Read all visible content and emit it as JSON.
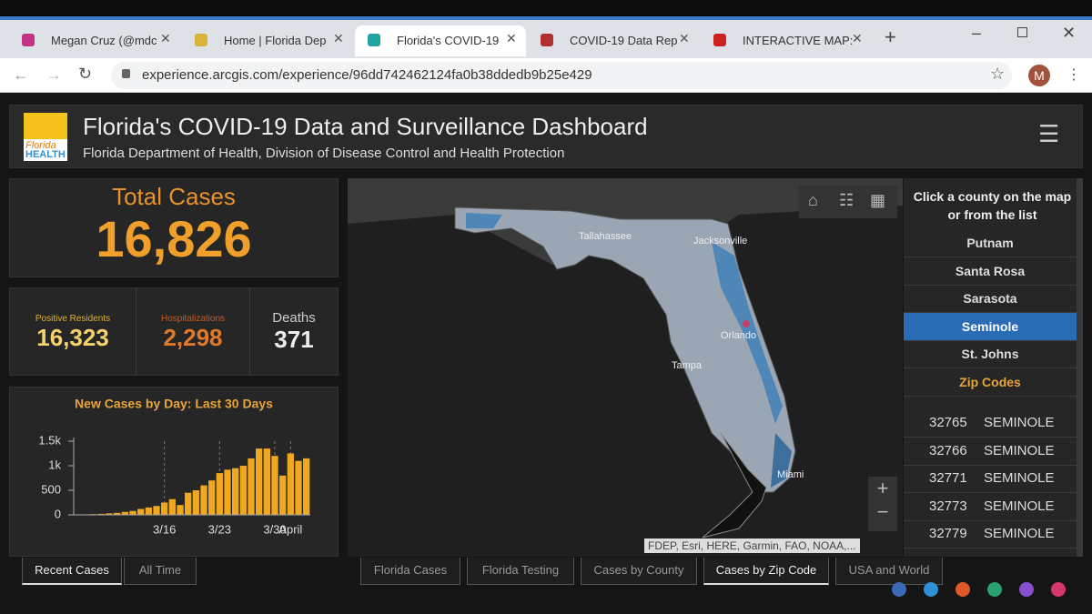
{
  "browser": {
    "tabs": [
      "Megan Cruz (@mdc",
      "Home | Florida Dep",
      "Florida's COVID-19",
      "COVID-19 Data Rep",
      "INTERACTIVE MAP:"
    ],
    "active_tab": 2,
    "url": "experience.arcgis.com/experience/96dd742462124fa0b38ddedb9b25e429",
    "profile": "M"
  },
  "header": {
    "logo": [
      "Florida",
      "HEALTH"
    ],
    "title": "Florida's COVID-19 Data and Surveillance Dashboard",
    "subtitle": "Florida Department of Health, Division of Disease Control and Health Protection"
  },
  "total": {
    "label": "Total Cases",
    "value": "16,826"
  },
  "stats": [
    {
      "label": "Positive Residents",
      "value": "16,323"
    },
    {
      "label": "Hospitalizations",
      "value": "2,298"
    },
    {
      "label": "Deaths",
      "value": "371"
    }
  ],
  "chart_data": {
    "type": "bar",
    "title": "New Cases by Day: Last 30 Days",
    "categories": [
      null,
      null,
      null,
      null,
      null,
      null,
      null,
      null,
      null,
      null,
      null,
      "3/16",
      null,
      null,
      null,
      null,
      null,
      null,
      "3/23",
      null,
      null,
      null,
      null,
      null,
      null,
      "3/30",
      null,
      "April",
      null,
      null
    ],
    "values": [
      5,
      10,
      15,
      20,
      30,
      40,
      60,
      80,
      120,
      150,
      180,
      250,
      320,
      200,
      450,
      500,
      600,
      700,
      850,
      920,
      950,
      1000,
      1150,
      1350,
      1350,
      1200,
      800,
      1250,
      1100,
      1150
    ],
    "color": "#f0a81e",
    "ylim": [
      0,
      1500
    ],
    "yticks": [
      0,
      500,
      {
        "value": 1000,
        "label": "1k"
      },
      {
        "value": 1500,
        "label": "1.5k"
      }
    ]
  },
  "left_tabs": [
    "Recent Cases",
    "All Time"
  ],
  "left_active": 0,
  "map": {
    "cities": [
      "Tallahassee",
      "Jacksonville",
      "Orlando",
      "Tampa",
      "Miami"
    ],
    "attribution": "FDEP, Esri, HERE, Garmin, FAO, NOAA,...",
    "zoom": [
      "+",
      "−"
    ]
  },
  "list": {
    "instruction": "Click a county on the map or from the list",
    "counties": [
      "Putnam",
      "Santa Rosa",
      "Sarasota",
      "Seminole",
      "St. Johns"
    ],
    "selected": 3,
    "section": "Zip Codes",
    "zips": [
      [
        "32765",
        "SEMINOLE"
      ],
      [
        "32766",
        "SEMINOLE"
      ],
      [
        "32771",
        "SEMINOLE"
      ],
      [
        "32773",
        "SEMINOLE"
      ],
      [
        "32779",
        "SEMINOLE"
      ]
    ]
  },
  "bottom_tabs": [
    "Florida Cases",
    "Florida Testing",
    "Cases by County",
    "Cases by Zip Code",
    "USA and World"
  ],
  "bottom_active": 3
}
